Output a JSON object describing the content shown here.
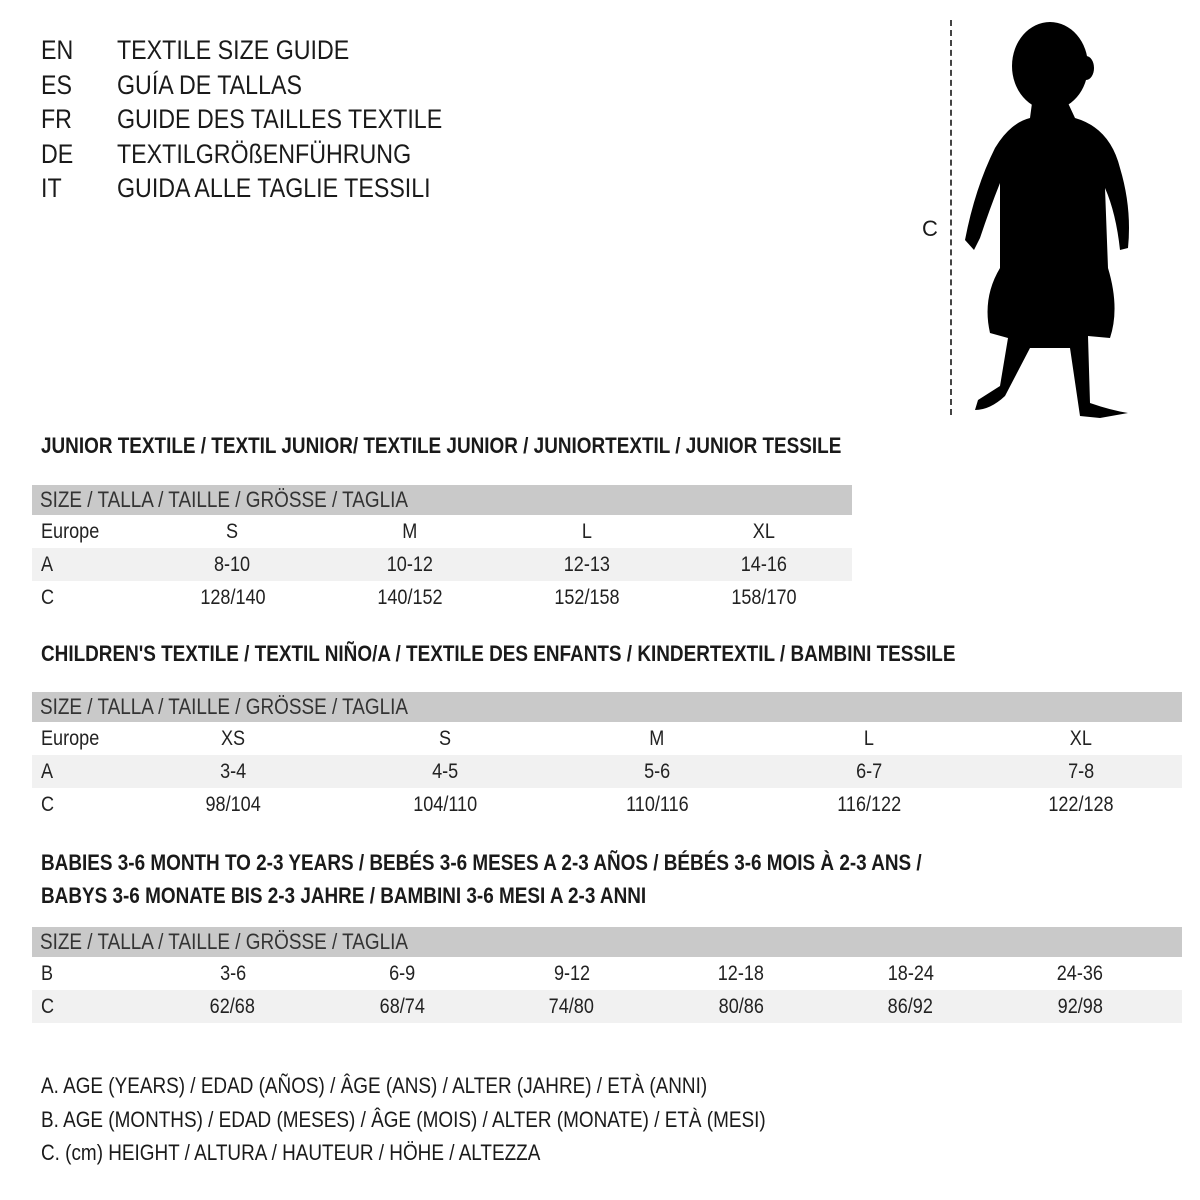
{
  "languages": [
    {
      "code": "EN",
      "text": "TEXTILE SIZE GUIDE"
    },
    {
      "code": "ES",
      "text": "GUÍA DE TALLAS"
    },
    {
      "code": "FR",
      "text": "GUIDE DES TAILLES TEXTILE"
    },
    {
      "code": "DE",
      "text": "TEXTILGRÖßENFÜHRUNG"
    },
    {
      "code": "IT",
      "text": "GUIDA ALLE TAGLIE TESSILI"
    }
  ],
  "figure": {
    "measure_label": "C",
    "icon": "child-silhouette"
  },
  "colors": {
    "header_bg": "#c9c9c9",
    "shaded_row": "#f1f1f1",
    "text": "#1a1a1a"
  },
  "tables": [
    {
      "title": [
        "JUNIOR TEXTILE / TEXTIL JUNIOR/ TEXTILE JUNIOR / JUNIORTEXTIL / JUNIOR TESSILE"
      ],
      "header": "SIZE / TALLA / TAILLE / GRÖSSE / TAGLIA",
      "rows": [
        {
          "label": "Europe",
          "values": [
            "S",
            "M",
            "L",
            "XL"
          ]
        },
        {
          "label": "A",
          "values": [
            "8-10",
            "10-12",
            "12-13",
            "14-16"
          ]
        },
        {
          "label": "C",
          "values": [
            "128/140",
            "140/152",
            "152/158",
            "158/170"
          ]
        }
      ]
    },
    {
      "title": [
        "CHILDREN'S TEXTILE / TEXTIL NIÑO/A / TEXTILE DES ENFANTS / KINDERTEXTIL / BAMBINI TESSILE"
      ],
      "header": "SIZE / TALLA / TAILLE / GRÖSSE / TAGLIA",
      "rows": [
        {
          "label": "Europe",
          "values": [
            "XS",
            "S",
            "M",
            "L",
            "XL"
          ]
        },
        {
          "label": "A",
          "values": [
            "3-4",
            "4-5",
            "5-6",
            "6-7",
            "7-8"
          ]
        },
        {
          "label": "C",
          "values": [
            "98/104",
            "104/110",
            "110/116",
            "116/122",
            "122/128"
          ]
        }
      ]
    },
    {
      "title": [
        "BABIES 3-6 MONTH TO 2-3 YEARS / BEBÉS 3-6 MESES A 2-3 AÑOS / BÉBÉS 3-6 MOIS À 2-3 ANS /",
        "BABYS 3-6 MONATE BIS 2-3 JAHRE / BAMBINI 3-6 MESI A 2-3 ANNI"
      ],
      "header": "SIZE / TALLA / TAILLE / GRÖSSE / TAGLIA",
      "rows": [
        {
          "label": "B",
          "values": [
            "3-6",
            "6-9",
            "9-12",
            "12-18",
            "18-24",
            "24-36"
          ]
        },
        {
          "label": "C",
          "values": [
            "62/68",
            "68/74",
            "74/80",
            "80/86",
            "86/92",
            "92/98"
          ]
        }
      ]
    }
  ],
  "legend": [
    "A. AGE (YEARS) / EDAD (AÑOS) / ÂGE (ANS) / ALTER (JAHRE) / ETÀ (ANNI)",
    "B. AGE (MONTHS) / EDAD (MESES) / ÂGE (MOIS) / ALTER (MONATE) / ETÀ (MESI)",
    "C. (cm) HEIGHT / ALTURA / HAUTEUR / HÖHE / ALTEZZA"
  ]
}
